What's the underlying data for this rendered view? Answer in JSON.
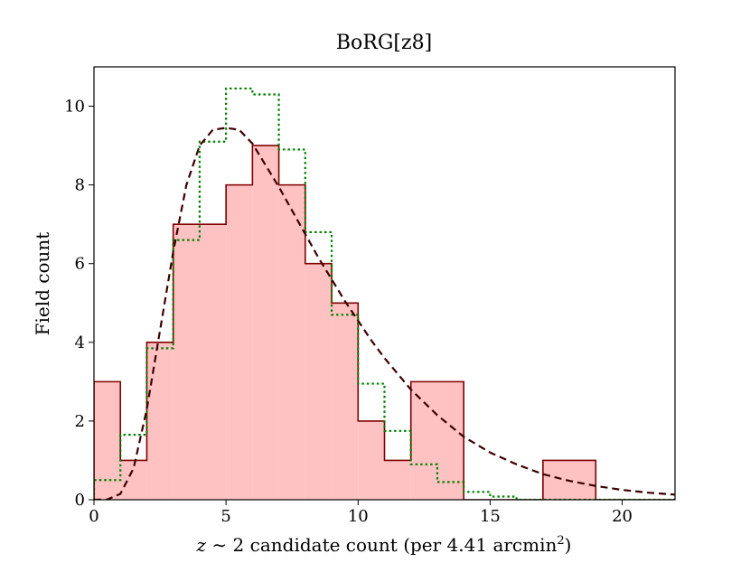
{
  "chart_data": {
    "type": "histogram",
    "title": "BoRG[z8]",
    "xlabel": "z ∼ 2 candidate count (per 4.41 arcmin²)",
    "xlabel_parts": {
      "italic": "z",
      "rest": " ∼ 2 candidate count (per 4.41 arcmin",
      "sup": "2",
      "close": ")"
    },
    "ylabel": "Field count",
    "xlim": [
      0,
      22
    ],
    "ylim": [
      0,
      11
    ],
    "xticks": [
      0,
      5,
      10,
      15,
      20
    ],
    "xtick_labels": [
      "0",
      "5",
      "10",
      "15",
      "20"
    ],
    "yticks": [
      0,
      2,
      4,
      6,
      8,
      10
    ],
    "ytick_labels": [
      "0",
      "2",
      "4",
      "6",
      "8",
      "10"
    ],
    "grid": false,
    "series": [
      {
        "style": "filled-step",
        "fill": "#ffc2c2",
        "edge": "#7f0000",
        "bins": [
          [
            0,
            1,
            3
          ],
          [
            1,
            2,
            1
          ],
          [
            2,
            3,
            4
          ],
          [
            3,
            5,
            7
          ],
          [
            5,
            6,
            8
          ],
          [
            6,
            7,
            9
          ],
          [
            7,
            8,
            8
          ],
          [
            8,
            9,
            6
          ],
          [
            9,
            10,
            5
          ],
          [
            10,
            11,
            2
          ],
          [
            11,
            12,
            1
          ],
          [
            12,
            14,
            3
          ],
          [
            14,
            17,
            0
          ],
          [
            17,
            19,
            1
          ],
          [
            19,
            22,
            0
          ]
        ]
      },
      {
        "style": "dotted-step",
        "color": "#008000",
        "bins": [
          [
            0,
            1,
            0.5
          ],
          [
            1,
            2,
            1.65
          ],
          [
            2,
            3,
            3.85
          ],
          [
            3,
            4,
            6.6
          ],
          [
            4,
            5,
            9.1
          ],
          [
            5,
            6,
            10.45
          ],
          [
            6,
            7,
            10.3
          ],
          [
            7,
            8,
            8.9
          ],
          [
            8,
            9,
            6.8
          ],
          [
            9,
            10,
            4.7
          ],
          [
            10,
            11,
            2.95
          ],
          [
            11,
            12,
            1.75
          ],
          [
            12,
            13,
            0.9
          ],
          [
            13,
            14,
            0.45
          ],
          [
            14,
            15,
            0.2
          ],
          [
            15,
            16,
            0.08
          ],
          [
            16,
            22,
            0.0
          ]
        ]
      },
      {
        "style": "dashed-curve",
        "color": "#3c0000",
        "x": [
          0,
          0.5,
          1,
          1.5,
          2,
          2.5,
          3,
          3.5,
          4,
          4.5,
          5,
          5.5,
          6,
          6.5,
          7,
          7.5,
          8,
          8.5,
          9,
          9.5,
          10,
          10.5,
          11,
          11.5,
          12,
          13,
          14,
          15,
          16,
          17,
          18,
          19,
          20,
          21,
          22
        ],
        "y": [
          0,
          0.005,
          0.15,
          0.8,
          2.3,
          4.3,
          6.3,
          8.0,
          9.0,
          9.4,
          9.45,
          9.4,
          9.05,
          8.5,
          7.95,
          7.35,
          6.75,
          6.15,
          5.6,
          5.05,
          4.55,
          4.05,
          3.6,
          3.2,
          2.8,
          2.15,
          1.6,
          1.2,
          0.9,
          0.65,
          0.48,
          0.35,
          0.25,
          0.18,
          0.13
        ]
      }
    ]
  }
}
